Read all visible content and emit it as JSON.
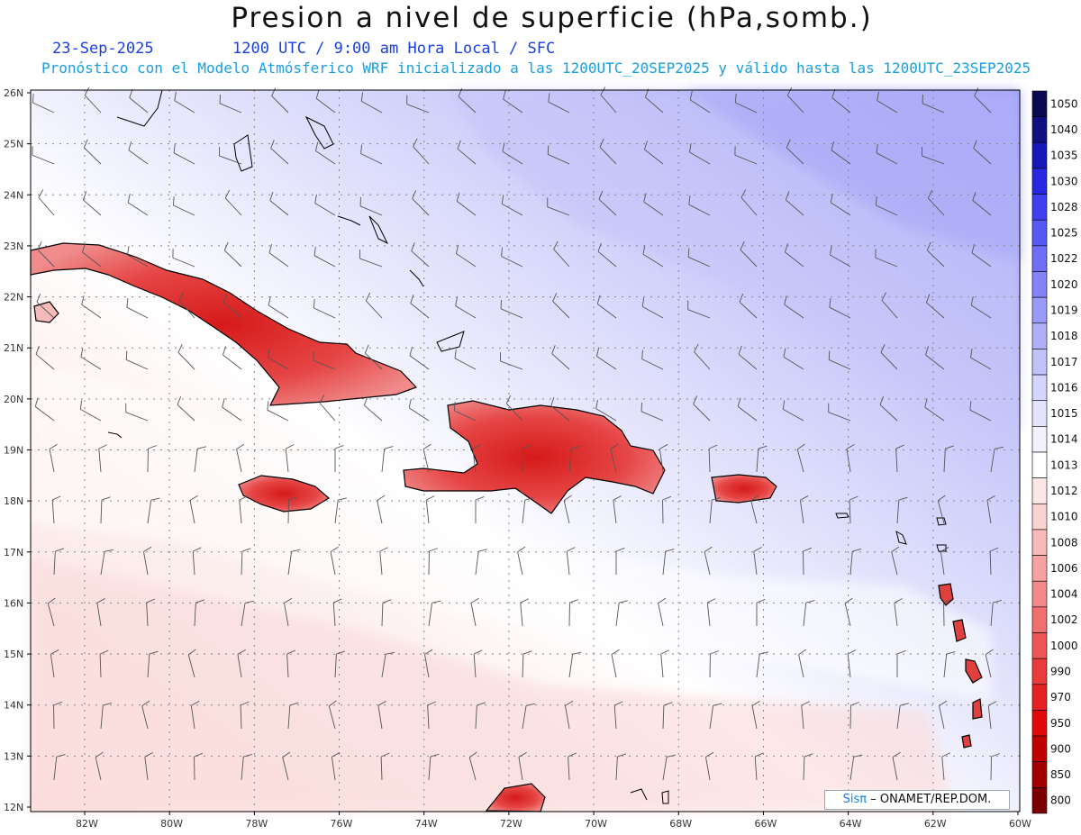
{
  "header": {
    "title": "Presion a nivel de superficie (hPa,somb.)",
    "date": "23-Sep-2025",
    "time_info": "1200 UTC / 9:00 am Hora Local / SFC",
    "forecast_info": "Pronóstico con el Modelo Atmósferico WRF inicializado a las 1200UTC_20SEP2025 y válido hasta las  1200UTC_23SEP2025"
  },
  "axes": {
    "lat_labels": [
      "26N",
      "25N",
      "24N",
      "23N",
      "22N",
      "21N",
      "20N",
      "19N",
      "18N",
      "17N",
      "16N",
      "15N",
      "14N",
      "13N",
      "12N"
    ],
    "lon_labels": [
      "82W",
      "80W",
      "78W",
      "76W",
      "74W",
      "72W",
      "70W",
      "68W",
      "66W",
      "64W",
      "62W",
      "60W"
    ]
  },
  "colorbar": {
    "levels": [
      "1050",
      "1040",
      "1035",
      "1030",
      "1028",
      "1025",
      "1022",
      "1020",
      "1019",
      "1018",
      "1017",
      "1016",
      "1015",
      "1014",
      "1013",
      "1012",
      "1010",
      "1008",
      "1006",
      "1004",
      "1002",
      "1000",
      "990",
      "970",
      "950",
      "900",
      "850",
      "800"
    ],
    "colors": [
      "#0a0a50",
      "#101080",
      "#1818b8",
      "#2828e0",
      "#4040f0",
      "#5858f4",
      "#6e6ef6",
      "#8484f8",
      "#9a9af8",
      "#b0b0fa",
      "#c2c2fa",
      "#d4d4fc",
      "#e4e4fd",
      "#f2f2fe",
      "#ffffff",
      "#fde6e6",
      "#fbd2d2",
      "#f8baba",
      "#f6a2a2",
      "#f38a8a",
      "#f07070",
      "#ec5656",
      "#e83c3c",
      "#e42222",
      "#e00808",
      "#c00000",
      "#a00000",
      "#7a0000"
    ]
  },
  "credit": {
    "sis": "Sisπ",
    "org": "– ONAMET/REP.DOM."
  }
}
